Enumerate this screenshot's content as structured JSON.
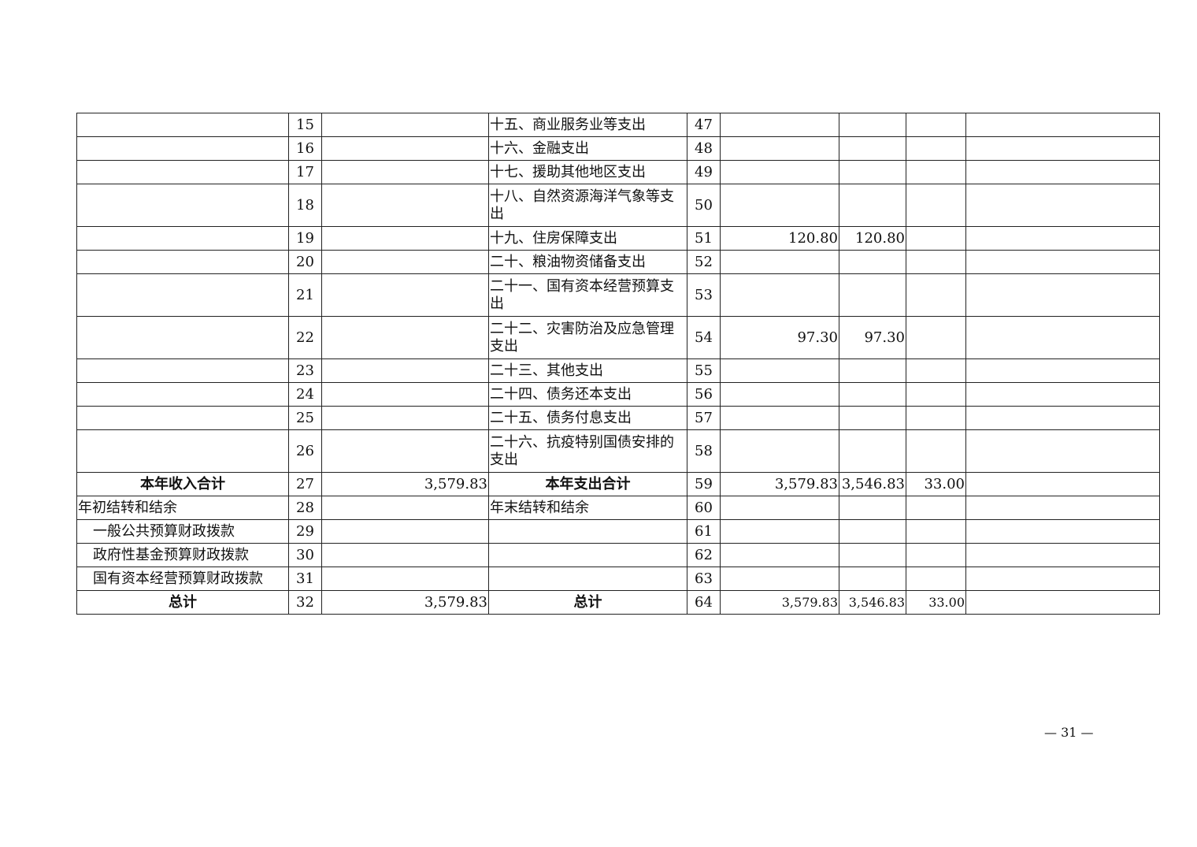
{
  "rows": [
    {
      "income_label": "",
      "income_no": "15",
      "income_amount": "",
      "expense_label": "十五、商业服务业等支出",
      "expense_no": "47",
      "c6": "",
      "c7": "",
      "c8": "",
      "c9": ""
    },
    {
      "income_label": "",
      "income_no": "16",
      "income_amount": "",
      "expense_label": "十六、金融支出",
      "expense_no": "48",
      "c6": "",
      "c7": "",
      "c8": "",
      "c9": ""
    },
    {
      "income_label": "",
      "income_no": "17",
      "income_amount": "",
      "expense_label": "十七、援助其他地区支出",
      "expense_no": "49",
      "c6": "",
      "c7": "",
      "c8": "",
      "c9": ""
    },
    {
      "income_label": "",
      "income_no": "18",
      "income_amount": "",
      "expense_label": "十八、自然资源海洋气象等支出",
      "expense_no": "50",
      "c6": "",
      "c7": "",
      "c8": "",
      "c9": "",
      "tall": true
    },
    {
      "income_label": "",
      "income_no": "19",
      "income_amount": "",
      "expense_label": "十九、住房保障支出",
      "expense_no": "51",
      "c6": "120.80",
      "c7": "120.80",
      "c8": "",
      "c9": ""
    },
    {
      "income_label": "",
      "income_no": "20",
      "income_amount": "",
      "expense_label": "二十、粮油物资储备支出",
      "expense_no": "52",
      "c6": "",
      "c7": "",
      "c8": "",
      "c9": ""
    },
    {
      "income_label": "",
      "income_no": "21",
      "income_amount": "",
      "expense_label": "二十一、国有资本经营预算支出",
      "expense_no": "53",
      "c6": "",
      "c7": "",
      "c8": "",
      "c9": "",
      "tall": true
    },
    {
      "income_label": "",
      "income_no": "22",
      "income_amount": "",
      "expense_label": "二十二、灾害防治及应急管理支出",
      "expense_no": "54",
      "c6": "97.30",
      "c7": "97.30",
      "c8": "",
      "c9": "",
      "tall": true
    },
    {
      "income_label": "",
      "income_no": "23",
      "income_amount": "",
      "expense_label": "二十三、其他支出",
      "expense_no": "55",
      "c6": "",
      "c7": "",
      "c8": "",
      "c9": ""
    },
    {
      "income_label": "",
      "income_no": "24",
      "income_amount": "",
      "expense_label": "二十四、债务还本支出",
      "expense_no": "56",
      "c6": "",
      "c7": "",
      "c8": "",
      "c9": ""
    },
    {
      "income_label": "",
      "income_no": "25",
      "income_amount": "",
      "expense_label": "二十五、债务付息支出",
      "expense_no": "57",
      "c6": "",
      "c7": "",
      "c8": "",
      "c9": ""
    },
    {
      "income_label": "",
      "income_no": "26",
      "income_amount": "",
      "expense_label": "二十六、抗疫特别国债安排的支出",
      "expense_no": "58",
      "c6": "",
      "c7": "",
      "c8": "",
      "c9": "",
      "tall": true
    },
    {
      "income_label": "本年收入合计",
      "income_no": "27",
      "income_amount": "3,579.83",
      "expense_label": "本年支出合计",
      "expense_no": "59",
      "c6": "3,579.83",
      "c7": "3,546.83",
      "c8": "33.00",
      "c9": "",
      "bold": true
    },
    {
      "income_label": "年初结转和结余",
      "income_no": "28",
      "income_amount": "",
      "expense_label": "年末结转和结余",
      "expense_no": "60",
      "c6": "",
      "c7": "",
      "c8": "",
      "c9": ""
    },
    {
      "income_label": "一般公共预算财政拨款",
      "income_no": "29",
      "income_amount": "",
      "expense_label": "",
      "expense_no": "61",
      "c6": "",
      "c7": "",
      "c8": "",
      "c9": "",
      "indent": true
    },
    {
      "income_label": "政府性基金预算财政拨款",
      "income_no": "30",
      "income_amount": "",
      "expense_label": "",
      "expense_no": "62",
      "c6": "",
      "c7": "",
      "c8": "",
      "c9": "",
      "indent": true
    },
    {
      "income_label": "国有资本经营预算财政拨款",
      "income_no": "31",
      "income_amount": "",
      "expense_label": "",
      "expense_no": "63",
      "c6": "",
      "c7": "",
      "c8": "",
      "c9": "",
      "indent": true
    },
    {
      "income_label": "总计",
      "income_no": "32",
      "income_amount": "3,579.83",
      "expense_label": "总计",
      "expense_no": "64",
      "c6": "3,579.83",
      "c7": "3,546.83",
      "c8": "33.00",
      "c9": "",
      "bold": true,
      "small": true
    }
  ],
  "page_number": "— 31 —"
}
